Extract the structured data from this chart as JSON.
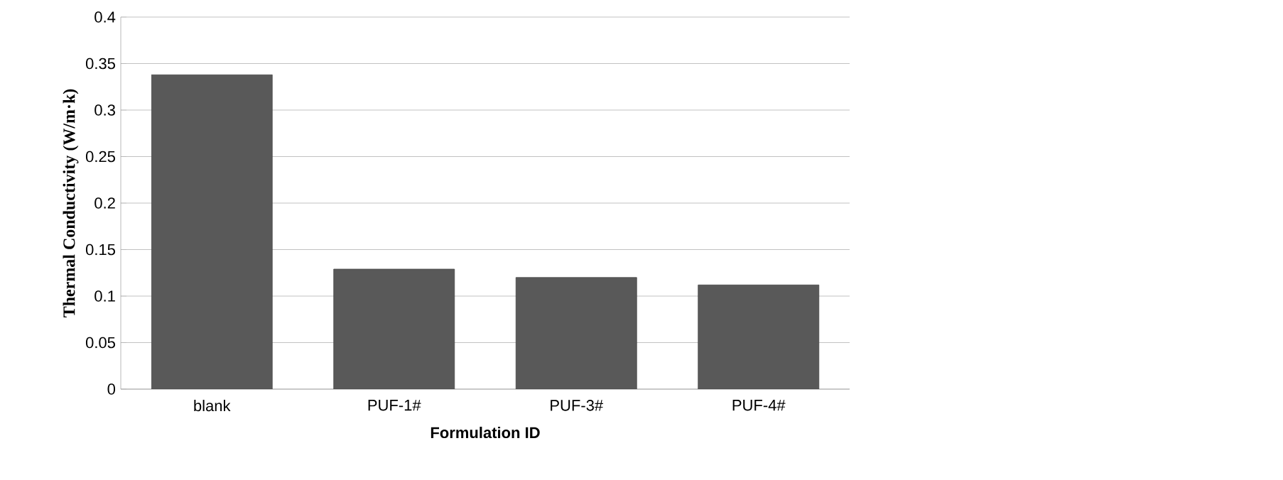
{
  "chart_data": {
    "type": "bar",
    "xlabel": "Formulation ID",
    "ylabel": "Thermal Conductivity (W/m·k)",
    "categories": [
      "blank",
      "PUF-1#",
      "PUF-3#",
      "PUF-4#"
    ],
    "values": [
      0.338,
      0.129,
      0.12,
      0.112
    ],
    "color": "#595959",
    "ylim": [
      0,
      0.4
    ],
    "yticks": [
      0,
      0.05,
      0.1,
      0.15,
      0.2,
      0.25,
      0.3,
      0.35,
      0.4
    ],
    "grid": "y"
  }
}
